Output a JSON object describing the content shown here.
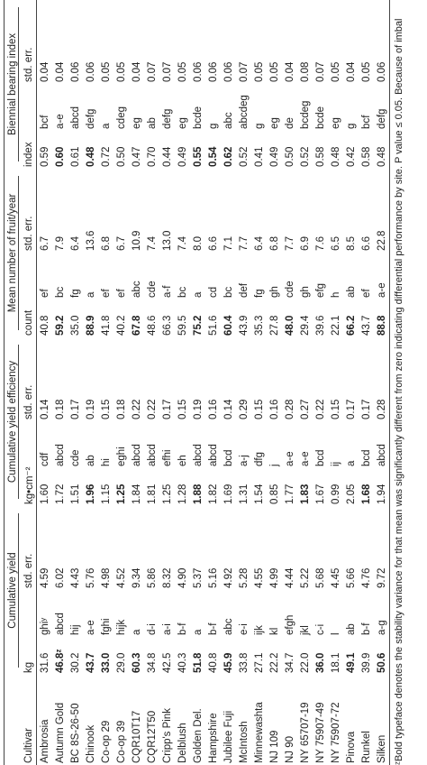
{
  "table": {
    "first_column": "Cultivar",
    "header_groups": [
      "Cumulative yield",
      "Cumulative yield efficiency",
      "Mean number of fruit/year",
      "Biennial bearing index"
    ],
    "subheaders": [
      "kg",
      "std. err.",
      "kg•cm⁻²",
      "std. err.",
      "count",
      "std. err.",
      "index",
      "std. err."
    ],
    "rows": [
      {
        "cells": [
          "Ambrosia",
          "31.6",
          "ghiʸ",
          "4.59",
          "1.60",
          "cdf",
          "0.14",
          "40.8",
          "ef",
          "6.7",
          "0.59",
          "bcf",
          "0.04"
        ],
        "bold": []
      },
      {
        "cells": [
          "Autumn Gold",
          "46.8ᶻ",
          "abcd",
          "6.02",
          "1.72",
          "abcd",
          "0.18",
          "59.2",
          "bc",
          "7.9",
          "0.60",
          "a-e",
          "0.04"
        ],
        "bold": [
          1,
          7,
          10
        ]
      },
      {
        "cells": [
          "BC 8S-26-50",
          "30.2",
          "hij",
          "4.43",
          "1.51",
          "cde",
          "0.17",
          "35.0",
          "fg",
          "6.4",
          "0.61",
          "abcd",
          "0.06"
        ],
        "bold": []
      },
      {
        "cells": [
          "Chinook",
          "43.7",
          "a-e",
          "5.76",
          "1.96",
          "ab",
          "0.19",
          "88.9",
          "a",
          "13.6",
          "0.48",
          "defg",
          "0.06"
        ],
        "bold": [
          1,
          4,
          7,
          10
        ]
      },
      {
        "cells": [
          "Co-op 29",
          "33.0",
          "fghi",
          "4.98",
          "1.15",
          "hi",
          "0.15",
          "41.8",
          "ef",
          "6.8",
          "0.72",
          "a",
          "0.05"
        ],
        "bold": [
          1
        ]
      },
      {
        "cells": [
          "Co-op 39",
          "29.0",
          "hijk",
          "4.52",
          "1.25",
          "eghi",
          "0.18",
          "40.2",
          "ef",
          "6.7",
          "0.50",
          "cdeg",
          "0.05"
        ],
        "bold": [
          4
        ]
      },
      {
        "cells": [
          "CQR10T17",
          "60.3",
          "a",
          "9.34",
          "1.84",
          "abcd",
          "0.22",
          "67.8",
          "abc",
          "10.9",
          "0.47",
          "eg",
          "0.04"
        ],
        "bold": [
          1,
          7
        ]
      },
      {
        "cells": [
          "CQR12T50",
          "34.8",
          "d-i",
          "5.86",
          "1.81",
          "abcd",
          "0.22",
          "48.6",
          "cde",
          "7.4",
          "0.70",
          "ab",
          "0.07"
        ],
        "bold": []
      },
      {
        "cells": [
          "Cripp's Pink",
          "42.5",
          "a-i",
          "8.32",
          "1.25",
          "efhi",
          "0.17",
          "66.3",
          "a-f",
          "13.0",
          "0.44",
          "defg",
          "0.07"
        ],
        "bold": []
      },
      {
        "cells": [
          "Delblush",
          "40.3",
          "b-f",
          "4.90",
          "1.28",
          "eh",
          "0.15",
          "59.5",
          "bc",
          "7.4",
          "0.49",
          "eg",
          "0.05"
        ],
        "bold": []
      },
      {
        "cells": [
          "Golden Del.",
          "51.8",
          "a",
          "5.37",
          "1.88",
          "abcd",
          "0.19",
          "75.2",
          "a",
          "8.0",
          "0.55",
          "bcde",
          "0.06"
        ],
        "bold": [
          1,
          4,
          7,
          10
        ]
      },
      {
        "cells": [
          "Hampshire",
          "40.8",
          "b-f",
          "5.16",
          "1.82",
          "abcd",
          "0.16",
          "51.6",
          "cd",
          "6.6",
          "0.54",
          "g",
          "0.06"
        ],
        "bold": [
          10
        ]
      },
      {
        "cells": [
          "Jubilee Fuji",
          "45.9",
          "abc",
          "4.92",
          "1.69",
          "bcd",
          "0.14",
          "60.4",
          "bc",
          "7.1",
          "0.62",
          "abc",
          "0.06"
        ],
        "bold": [
          1,
          7,
          10
        ]
      },
      {
        "cells": [
          "McIntosh",
          "33.8",
          "e-i",
          "5.28",
          "1.31",
          "a-j",
          "0.29",
          "43.9",
          "def",
          "7.7",
          "0.52",
          "abcdeg",
          "0.07"
        ],
        "bold": []
      },
      {
        "cells": [
          "Minnewashta",
          "27.1",
          "ijk",
          "4.55",
          "1.54",
          "dfg",
          "0.15",
          "35.3",
          "fg",
          "6.4",
          "0.41",
          "g",
          "0.05"
        ],
        "bold": []
      },
      {
        "cells": [
          "NJ 109",
          "22.2",
          "kl",
          "4.99",
          "0.85",
          "j",
          "0.16",
          "27.8",
          "gh",
          "6.8",
          "0.49",
          "eg",
          "0.05"
        ],
        "bold": []
      },
      {
        "cells": [
          "NJ 90",
          "34.7",
          "efgh",
          "4.44",
          "1.77",
          "a-e",
          "0.28",
          "48.0",
          "cde",
          "7.7",
          "0.50",
          "de",
          "0.04"
        ],
        "bold": [
          7
        ]
      },
      {
        "cells": [
          "NY 65707-19",
          "22.0",
          "jkl",
          "5.22",
          "1.83",
          "a-e",
          "0.27",
          "29.4",
          "gh",
          "6.9",
          "0.52",
          "bcdeg",
          "0.08"
        ],
        "bold": [
          4
        ]
      },
      {
        "cells": [
          "NY 75907-49",
          "36.0",
          "c-i",
          "5.68",
          "1.67",
          "bcd",
          "0.22",
          "39.6",
          "efg",
          "7.6",
          "0.58",
          "bcde",
          "0.07"
        ],
        "bold": [
          1
        ]
      },
      {
        "cells": [
          "NY 75907-72",
          "18.1",
          "l",
          "4.45",
          "0.99",
          "ij",
          "0.15",
          "22.1",
          "h",
          "6.5",
          "0.48",
          "eg",
          "0.05"
        ],
        "bold": []
      },
      {
        "cells": [
          "Pinova",
          "49.1",
          "ab",
          "5.66",
          "2.05",
          "a",
          "0.17",
          "66.2",
          "ab",
          "8.5",
          "0.42",
          "g",
          "0.04"
        ],
        "bold": [
          1,
          7
        ]
      },
      {
        "cells": [
          "Runkel",
          "39.9",
          "b-f",
          "4.76",
          "1.68",
          "bcd",
          "0.17",
          "43.7",
          "ef",
          "6.6",
          "0.58",
          "bcf",
          "0.05"
        ],
        "bold": [
          4
        ]
      },
      {
        "cells": [
          "Silken",
          "50.6",
          "a-g",
          "9.72",
          "1.94",
          "abcd",
          "0.28",
          "88.8",
          "a-e",
          "22.8",
          "0.48",
          "defg",
          "0.06"
        ],
        "bold": [
          1,
          7
        ]
      }
    ]
  },
  "footnote": "ᶻBold typeface denotes the stability variance for that mean was significantly different from zero indicating differential performance by site. P value ≤ 0.05. Because of imbal"
}
